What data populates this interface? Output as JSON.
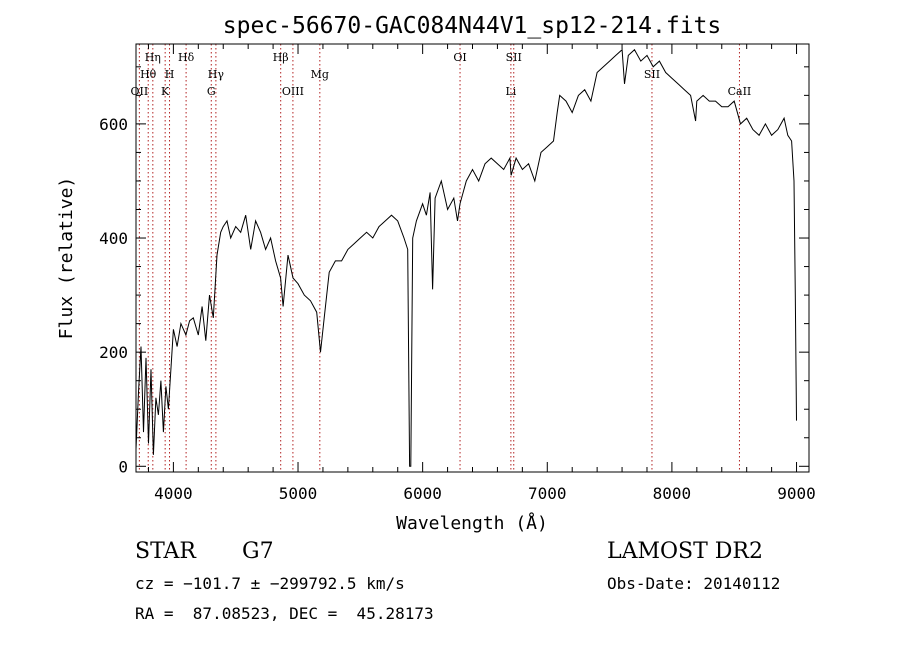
{
  "chart_data": {
    "type": "line",
    "title": "spec-56670-GAC084N44V1_sp12-214.fits",
    "xlabel": "Wavelength (Å)",
    "ylabel": "Flux (relative)",
    "xlim": [
      3700,
      9100
    ],
    "ylim": [
      -10,
      740
    ],
    "xticks": [
      4000,
      5000,
      6000,
      7000,
      8000,
      9000
    ],
    "yticks": [
      0,
      200,
      400,
      600
    ],
    "grid": false,
    "line_color": "#000000",
    "marker_color": "#b22222",
    "series": [
      {
        "points": [
          [
            3700,
            30
          ],
          [
            3720,
            130
          ],
          [
            3740,
            210
          ],
          [
            3760,
            60
          ],
          [
            3780,
            190
          ],
          [
            3800,
            40
          ],
          [
            3820,
            170
          ],
          [
            3840,
            20
          ],
          [
            3860,
            120
          ],
          [
            3880,
            90
          ],
          [
            3900,
            150
          ],
          [
            3920,
            60
          ],
          [
            3940,
            140
          ],
          [
            3960,
            100
          ],
          [
            3980,
            170
          ],
          [
            4000,
            240
          ],
          [
            4030,
            210
          ],
          [
            4060,
            250
          ],
          [
            4100,
            230
          ],
          [
            4130,
            255
          ],
          [
            4160,
            260
          ],
          [
            4200,
            230
          ],
          [
            4230,
            280
          ],
          [
            4260,
            220
          ],
          [
            4290,
            300
          ],
          [
            4320,
            260
          ],
          [
            4350,
            370
          ],
          [
            4380,
            410
          ],
          [
            4400,
            420
          ],
          [
            4430,
            430
          ],
          [
            4460,
            400
          ],
          [
            4500,
            420
          ],
          [
            4540,
            410
          ],
          [
            4580,
            440
          ],
          [
            4620,
            380
          ],
          [
            4660,
            430
          ],
          [
            4700,
            410
          ],
          [
            4740,
            380
          ],
          [
            4780,
            400
          ],
          [
            4820,
            360
          ],
          [
            4860,
            330
          ],
          [
            4880,
            280
          ],
          [
            4920,
            370
          ],
          [
            4960,
            330
          ],
          [
            5000,
            320
          ],
          [
            5050,
            300
          ],
          [
            5100,
            290
          ],
          [
            5150,
            270
          ],
          [
            5180,
            200
          ],
          [
            5210,
            260
          ],
          [
            5250,
            340
          ],
          [
            5300,
            360
          ],
          [
            5350,
            360
          ],
          [
            5400,
            380
          ],
          [
            5450,
            390
          ],
          [
            5500,
            400
          ],
          [
            5550,
            410
          ],
          [
            5600,
            400
          ],
          [
            5650,
            420
          ],
          [
            5700,
            430
          ],
          [
            5750,
            440
          ],
          [
            5800,
            430
          ],
          [
            5850,
            400
          ],
          [
            5880,
            380
          ],
          [
            5895,
            0
          ],
          [
            5905,
            0
          ],
          [
            5920,
            400
          ],
          [
            5950,
            430
          ],
          [
            6000,
            460
          ],
          [
            6030,
            440
          ],
          [
            6060,
            480
          ],
          [
            6080,
            310
          ],
          [
            6100,
            470
          ],
          [
            6150,
            500
          ],
          [
            6200,
            450
          ],
          [
            6250,
            470
          ],
          [
            6280,
            430
          ],
          [
            6300,
            460
          ],
          [
            6350,
            500
          ],
          [
            6400,
            520
          ],
          [
            6450,
            500
          ],
          [
            6500,
            530
          ],
          [
            6550,
            540
          ],
          [
            6600,
            530
          ],
          [
            6650,
            520
          ],
          [
            6700,
            540
          ],
          [
            6710,
            510
          ],
          [
            6750,
            540
          ],
          [
            6800,
            520
          ],
          [
            6850,
            530
          ],
          [
            6900,
            500
          ],
          [
            6950,
            550
          ],
          [
            7000,
            560
          ],
          [
            7050,
            570
          ],
          [
            7080,
            620
          ],
          [
            7100,
            650
          ],
          [
            7150,
            640
          ],
          [
            7200,
            620
          ],
          [
            7250,
            650
          ],
          [
            7300,
            660
          ],
          [
            7350,
            640
          ],
          [
            7400,
            690
          ],
          [
            7450,
            700
          ],
          [
            7500,
            710
          ],
          [
            7550,
            720
          ],
          [
            7600,
            730
          ],
          [
            7620,
            670
          ],
          [
            7650,
            720
          ],
          [
            7700,
            730
          ],
          [
            7750,
            710
          ],
          [
            7800,
            720
          ],
          [
            7850,
            700
          ],
          [
            7900,
            710
          ],
          [
            7950,
            690
          ],
          [
            8000,
            680
          ],
          [
            8050,
            670
          ],
          [
            8100,
            660
          ],
          [
            8150,
            650
          ],
          [
            8190,
            605
          ],
          [
            8200,
            640
          ],
          [
            8250,
            650
          ],
          [
            8300,
            640
          ],
          [
            8350,
            640
          ],
          [
            8400,
            630
          ],
          [
            8450,
            630
          ],
          [
            8500,
            640
          ],
          [
            8550,
            600
          ],
          [
            8600,
            610
          ],
          [
            8650,
            590
          ],
          [
            8700,
            580
          ],
          [
            8750,
            600
          ],
          [
            8800,
            580
          ],
          [
            8850,
            590
          ],
          [
            8900,
            610
          ],
          [
            8930,
            580
          ],
          [
            8960,
            570
          ],
          [
            8980,
            500
          ],
          [
            8990,
            300
          ],
          [
            9000,
            80
          ]
        ]
      }
    ],
    "lines": [
      {
        "wavelength": 3727,
        "labels": [
          "OII"
        ],
        "rows": [
          1
        ]
      },
      {
        "wavelength": 3798,
        "labels": [
          "Hθ"
        ],
        "rows": [
          2
        ]
      },
      {
        "wavelength": 3835,
        "labels": [
          "Hη"
        ],
        "rows": [
          3
        ]
      },
      {
        "wavelength": 3934,
        "labels": [
          "K"
        ],
        "rows": [
          1
        ]
      },
      {
        "wavelength": 3969,
        "labels": [
          "H"
        ],
        "rows": [
          2
        ]
      },
      {
        "wavelength": 4102,
        "labels": [
          "Hδ"
        ],
        "rows": [
          3
        ]
      },
      {
        "wavelength": 4304,
        "labels": [
          "G"
        ],
        "rows": [
          1
        ]
      },
      {
        "wavelength": 4341,
        "labels": [
          "Hγ"
        ],
        "rows": [
          2
        ]
      },
      {
        "wavelength": 4861,
        "labels": [
          "Hβ"
        ],
        "rows": [
          3
        ]
      },
      {
        "wavelength": 4959,
        "labels": [
          "OIII"
        ],
        "rows": [
          1
        ]
      },
      {
        "wavelength": 5175,
        "labels": [
          "Mg"
        ],
        "rows": [
          2
        ]
      },
      {
        "wavelength": 6300,
        "labels": [
          "OI"
        ],
        "rows": [
          3
        ]
      },
      {
        "wavelength": 6708,
        "labels": [
          "Li"
        ],
        "rows": [
          1
        ]
      },
      {
        "wavelength": 6731,
        "labels": [
          "SII"
        ],
        "rows": [
          3
        ]
      },
      {
        "wavelength": 7840,
        "labels": [
          "SII"
        ],
        "rows": [
          2
        ]
      },
      {
        "wavelength": 8542,
        "labels": [
          "CaII"
        ],
        "rows": [
          1
        ]
      }
    ]
  },
  "info": {
    "obj_class": "STAR",
    "subclass": "G7",
    "survey": "LAMOST DR2",
    "velocity": "cz = −101.7 ± −299792.5 km/s",
    "obs_date": "Obs-Date: 20140112",
    "coords": "RA =  87.08523, DEC =  45.28173"
  }
}
